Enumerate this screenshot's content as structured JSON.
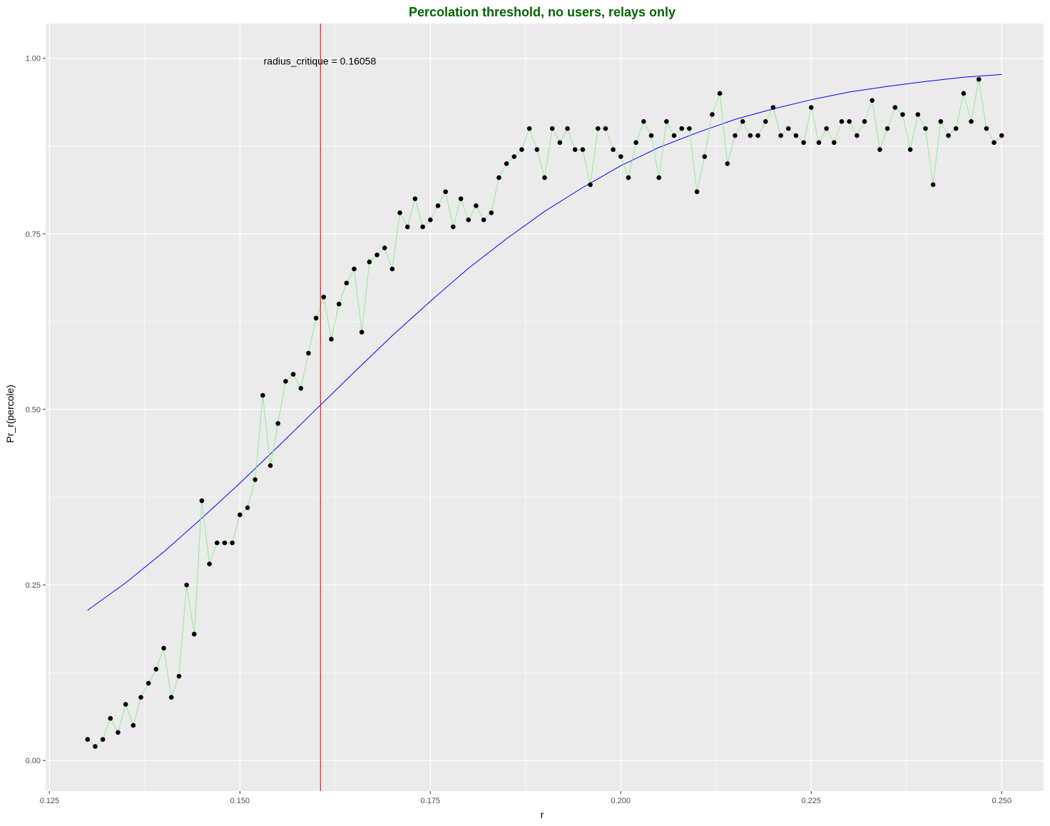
{
  "chart_data": {
    "type": "line",
    "title": "Percolation threshold, no users, relays only",
    "xlabel": "r",
    "ylabel": "Pr_r(percole)",
    "xlim": [
      0.1245,
      0.2555
    ],
    "ylim": [
      -0.0435,
      1.0495
    ],
    "x_ticks": [
      0.125,
      0.15,
      0.175,
      0.2,
      0.225,
      0.25
    ],
    "x_tick_labels": [
      "0.125",
      "0.150",
      "0.175",
      "0.200",
      "0.225",
      "0.250"
    ],
    "y_ticks": [
      0,
      0.25,
      0.5,
      0.75,
      1.0
    ],
    "y_tick_labels": [
      "0.00",
      "0.25",
      "0.50",
      "0.75",
      "1.00"
    ],
    "grid": true,
    "colors": {
      "title": "#006400",
      "panel": "#ebebeb",
      "grid": "#ffffff",
      "observed_line": "#90ee90",
      "points": "#000000",
      "fit_line": "#0000ff",
      "threshold_line": "#ff0000"
    },
    "annotation": {
      "text": "radius_critique = 0.16058",
      "x": 0.1605,
      "y": 0.995
    },
    "threshold_x": 0.16058,
    "series": [
      {
        "kind": "observed",
        "x_start": 0.13,
        "x_step": 0.001,
        "values": [
          0.03,
          0.02,
          0.03,
          0.06,
          0.04,
          0.08,
          0.05,
          0.09,
          0.11,
          0.13,
          0.16,
          0.09,
          0.12,
          0.25,
          0.18,
          0.37,
          0.28,
          0.31,
          0.31,
          0.31,
          0.35,
          0.36,
          0.4,
          0.52,
          0.42,
          0.48,
          0.54,
          0.55,
          0.53,
          0.58,
          0.63,
          0.66,
          0.6,
          0.65,
          0.68,
          0.7,
          0.61,
          0.71,
          0.72,
          0.73,
          0.7,
          0.78,
          0.76,
          0.8,
          0.76,
          0.77,
          0.79,
          0.81,
          0.76,
          0.8,
          0.77,
          0.79,
          0.77,
          0.78,
          0.83,
          0.85,
          0.86,
          0.87,
          0.9,
          0.87,
          0.83,
          0.9,
          0.88,
          0.9,
          0.87,
          0.87,
          0.82,
          0.9,
          0.9,
          0.87,
          0.86,
          0.83,
          0.88,
          0.91,
          0.89,
          0.83,
          0.91,
          0.89,
          0.9,
          0.9,
          0.81,
          0.86,
          0.92,
          0.95,
          0.85,
          0.89,
          0.91,
          0.89,
          0.89,
          0.91,
          0.93,
          0.89,
          0.9,
          0.89,
          0.88,
          0.93,
          0.88,
          0.9,
          0.88,
          0.91,
          0.91,
          0.89,
          0.91,
          0.94,
          0.87,
          0.9,
          0.93,
          0.92,
          0.87,
          0.92,
          0.9,
          0.82,
          0.91,
          0.89,
          0.9,
          0.95,
          0.91,
          0.97,
          0.9,
          0.88,
          0.89
        ]
      },
      {
        "kind": "fit",
        "x": [
          0.13,
          0.135,
          0.14,
          0.145,
          0.15,
          0.155,
          0.16,
          0.165,
          0.17,
          0.175,
          0.18,
          0.185,
          0.19,
          0.195,
          0.2,
          0.205,
          0.21,
          0.215,
          0.22,
          0.225,
          0.23,
          0.235,
          0.24,
          0.245,
          0.25
        ],
        "values": [
          0.214,
          0.253,
          0.297,
          0.345,
          0.395,
          0.447,
          0.5,
          0.553,
          0.605,
          0.654,
          0.701,
          0.743,
          0.782,
          0.816,
          0.847,
          0.873,
          0.894,
          0.913,
          0.928,
          0.941,
          0.952,
          0.96,
          0.967,
          0.973,
          0.977
        ]
      }
    ]
  }
}
